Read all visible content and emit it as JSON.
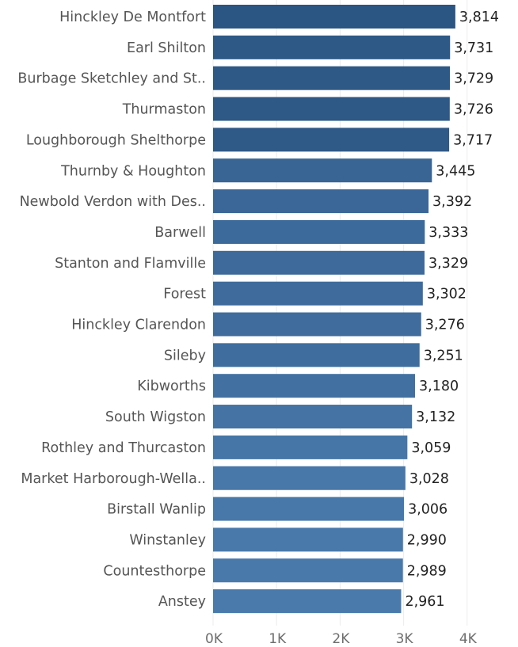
{
  "chart_data": {
    "type": "bar",
    "orientation": "horizontal",
    "categories": [
      "Hinckley De Montfort",
      "Earl Shilton",
      "Burbage Sketchley and St..",
      "Thurmaston",
      "Loughborough Shelthorpe",
      "Thurnby & Houghton",
      "Newbold Verdon with Des..",
      "Barwell",
      "Stanton and Flamville",
      "Forest",
      "Hinckley Clarendon",
      "Sileby",
      "Kibworths",
      "South Wigston",
      "Rothley and Thurcaston",
      "Market Harborough-Wella..",
      "Birstall Wanlip",
      "Winstanley",
      "Countesthorpe",
      "Anstey"
    ],
    "values": [
      3814,
      3731,
      3729,
      3726,
      3717,
      3445,
      3392,
      3333,
      3329,
      3302,
      3276,
      3251,
      3180,
      3132,
      3059,
      3028,
      3006,
      2990,
      2989,
      2961
    ],
    "value_labels": [
      "3,814",
      "3,731",
      "3,729",
      "3,726",
      "3,717",
      "3,445",
      "3,392",
      "3,333",
      "3,329",
      "3,302",
      "3,276",
      "3,251",
      "3,180",
      "3,132",
      "3,059",
      "3,028",
      "3,006",
      "2,990",
      "2,989",
      "2,961"
    ],
    "x_ticks": [
      0,
      1000,
      2000,
      3000,
      4000
    ],
    "x_tick_labels": [
      "0K",
      "1K",
      "2K",
      "3K",
      "4K"
    ],
    "xlim": [
      0,
      4600
    ],
    "grid": "vertical",
    "legend": "none",
    "color_scale": {
      "low": "#4a7aac",
      "high": "#2b5582"
    }
  }
}
